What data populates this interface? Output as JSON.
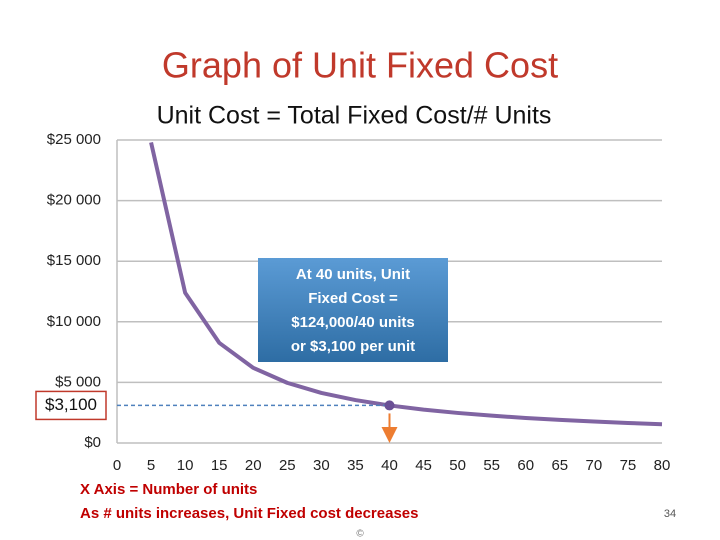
{
  "chart_data": {
    "type": "line",
    "title": "Graph of Unit Fixed Cost",
    "subtitle": "Unit Cost = Total Fixed Cost/# Units",
    "x": [
      5,
      10,
      15,
      20,
      25,
      30,
      35,
      40,
      45,
      50,
      55,
      60,
      65,
      70,
      75,
      80
    ],
    "values": [
      24800,
      12400,
      8267,
      6200,
      4960,
      4133,
      3543,
      3100,
      2756,
      2480,
      2255,
      2067,
      1908,
      1771,
      1653,
      1550
    ],
    "color": "#8064a2",
    "xlim": [
      0,
      80
    ],
    "xticks": [
      0,
      5,
      10,
      15,
      20,
      25,
      30,
      35,
      40,
      45,
      50,
      55,
      60,
      65,
      70,
      75,
      80
    ],
    "ylim": [
      0,
      25000
    ],
    "yticks": [
      {
        "value": 0,
        "label": "$0"
      },
      {
        "value": 5000,
        "label": "$5 000"
      },
      {
        "value": 10000,
        "label": "$10 000"
      },
      {
        "value": 15000,
        "label": "$15 000"
      },
      {
        "value": 20000,
        "label": "$20 000"
      },
      {
        "value": 25000,
        "label": "$25 000"
      }
    ],
    "grid": true,
    "annotation": {
      "x": 40,
      "y": 3100,
      "label": "$3,100",
      "callout": [
        "At 40 units, Unit",
        "Fixed Cost =",
        "$124,000/40  units",
        "or $3,100 per unit"
      ]
    },
    "notes": [
      "X Axis = Number of units",
      "As # units increases, Unit Fixed cost decreases"
    ],
    "page_number": "34",
    "footer": "©"
  }
}
